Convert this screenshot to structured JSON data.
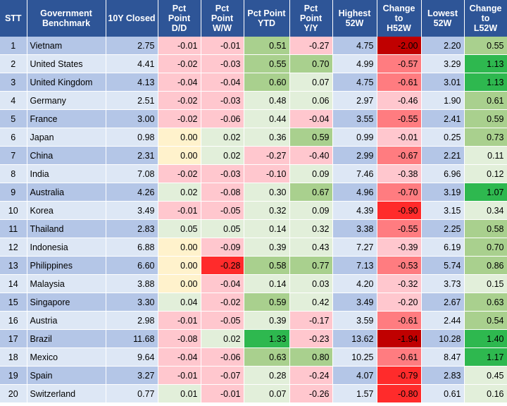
{
  "colors": {
    "header_bg": "#2e5597",
    "row_odd_bg": "#b4c6e7",
    "row_even_bg": "#dde7f5",
    "light_red": "#ffc7ce",
    "medium_red": "#ff7c80",
    "strong_red": "#ff2b2b",
    "dark_red": "#c00000",
    "light_green": "#e2efda",
    "medium_green": "#a9d08e",
    "strong_green": "#70ad47",
    "vivid_green": "#2eb84f",
    "neutral_yellow": "#fff2cc"
  },
  "headers": [
    "STT",
    "Government\nBenchmark",
    "10Y Closed",
    "Pct\nPoint\nD/D",
    "Pct\nPoint\nW/W",
    "Pct Point\nYTD",
    "Pct\nPoint\nY/Y",
    "Highest\n52W",
    "Change\nto\nH52W",
    "Lowest\n52W",
    "Change\nto\nL52W"
  ],
  "rows": [
    [
      "1",
      "Vietnam",
      "2.75",
      "-0.01",
      "-0.01",
      "0.51",
      "-0.27",
      "4.75",
      "-2.00",
      "2.20",
      "0.55"
    ],
    [
      "2",
      "United States",
      "4.41",
      "-0.02",
      "-0.03",
      "0.55",
      "0.70",
      "4.99",
      "-0.57",
      "3.29",
      "1.13"
    ],
    [
      "3",
      "United Kingdom",
      "4.13",
      "-0.04",
      "-0.04",
      "0.60",
      "0.07",
      "4.75",
      "-0.61",
      "3.01",
      "1.13"
    ],
    [
      "4",
      "Germany",
      "2.51",
      "-0.02",
      "-0.03",
      "0.48",
      "0.06",
      "2.97",
      "-0.46",
      "1.90",
      "0.61"
    ],
    [
      "5",
      "France",
      "3.00",
      "-0.02",
      "-0.06",
      "0.44",
      "-0.04",
      "3.55",
      "-0.55",
      "2.41",
      "0.59"
    ],
    [
      "6",
      "Japan",
      "0.98",
      "0.00",
      "0.02",
      "0.36",
      "0.59",
      "0.99",
      "-0.01",
      "0.25",
      "0.73"
    ],
    [
      "7",
      "China",
      "2.31",
      "0.00",
      "0.02",
      "-0.27",
      "-0.40",
      "2.99",
      "-0.67",
      "2.21",
      "0.11"
    ],
    [
      "8",
      "India",
      "7.08",
      "-0.02",
      "-0.03",
      "-0.10",
      "0.09",
      "7.46",
      "-0.38",
      "6.96",
      "0.12"
    ],
    [
      "9",
      "Australia",
      "4.26",
      "0.02",
      "-0.08",
      "0.30",
      "0.67",
      "4.96",
      "-0.70",
      "3.19",
      "1.07"
    ],
    [
      "10",
      "Korea",
      "3.49",
      "-0.01",
      "-0.05",
      "0.32",
      "0.09",
      "4.39",
      "-0.90",
      "3.15",
      "0.34"
    ],
    [
      "11",
      "Thailand",
      "2.83",
      "0.05",
      "0.05",
      "0.14",
      "0.32",
      "3.38",
      "-0.55",
      "2.25",
      "0.58"
    ],
    [
      "12",
      "Indonesia",
      "6.88",
      "0.00",
      "-0.09",
      "0.39",
      "0.43",
      "7.27",
      "-0.39",
      "6.19",
      "0.70"
    ],
    [
      "13",
      "Philippines",
      "6.60",
      "0.00",
      "-0.28",
      "0.58",
      "0.77",
      "7.13",
      "-0.53",
      "5.74",
      "0.86"
    ],
    [
      "14",
      "Malaysia",
      "3.88",
      "0.00",
      "-0.04",
      "0.14",
      "0.03",
      "4.20",
      "-0.32",
      "3.73",
      "0.15"
    ],
    [
      "15",
      "Singapore",
      "3.30",
      "0.04",
      "-0.02",
      "0.59",
      "0.42",
      "3.49",
      "-0.20",
      "2.67",
      "0.63"
    ],
    [
      "16",
      "Austria",
      "2.98",
      "-0.01",
      "-0.05",
      "0.39",
      "-0.17",
      "3.59",
      "-0.61",
      "2.44",
      "0.54"
    ],
    [
      "17",
      "Brazil",
      "11.68",
      "-0.08",
      "0.02",
      "1.33",
      "-0.23",
      "13.62",
      "-1.94",
      "10.28",
      "1.40"
    ],
    [
      "18",
      "Mexico",
      "9.64",
      "-0.04",
      "-0.06",
      "0.63",
      "0.80",
      "10.25",
      "-0.61",
      "8.47",
      "1.17"
    ],
    [
      "19",
      "Spain",
      "3.27",
      "-0.01",
      "-0.07",
      "0.28",
      "-0.24",
      "4.07",
      "-0.79",
      "2.83",
      "0.45"
    ],
    [
      "20",
      "Switzerland",
      "0.77",
      "0.01",
      "-0.01",
      "0.07",
      "-0.26",
      "1.57",
      "-0.80",
      "0.61",
      "0.16"
    ]
  ]
}
